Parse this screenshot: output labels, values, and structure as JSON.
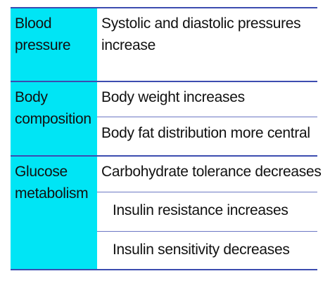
{
  "rows": [
    {
      "category": [
        "Blood",
        "pressure"
      ],
      "effects": [
        [
          "Systolic and diastolic pressures",
          "increase"
        ]
      ]
    },
    {
      "category": [
        "Body",
        "composition"
      ],
      "effects": [
        [
          "Body weight increases"
        ],
        [
          "Body fat distribution more central"
        ]
      ]
    },
    {
      "category": [
        "Glucose",
        "metabolism"
      ],
      "effects": [
        [
          "Carbohydrate tolerance decreases"
        ],
        [
          "Insulin resistance increases"
        ],
        [
          "Insulin sensitivity decreases"
        ]
      ]
    }
  ],
  "colors": {
    "category_fill": "#00e5f5",
    "rule": "#3c4cb0"
  }
}
